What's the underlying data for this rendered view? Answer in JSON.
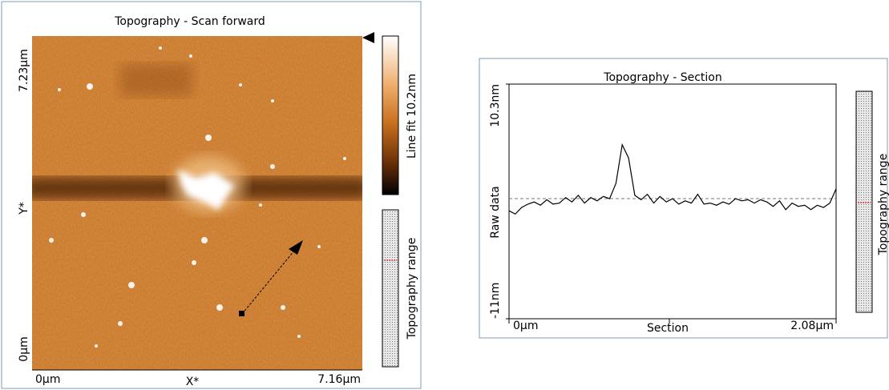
{
  "scan_panel": {
    "title": "Topography - Scan forward",
    "y_top": "7.23µm",
    "y_label": "Y*",
    "y_bottom": "0µm",
    "x_left": "0µm",
    "x_label": "X*",
    "x_right": "7.16µm",
    "colorbar_label": "Line fit 10.2nm",
    "range_label": "Topography range"
  },
  "range_panel": {
    "label": "Topography range"
  },
  "chart_data": {
    "type": "line",
    "title": "Topography - Section",
    "y_label": "Raw data",
    "x_label": "Section",
    "color": "#000000",
    "ylim": [
      -11,
      10.3
    ],
    "yticks": [
      {
        "value": 10.3,
        "label": "10.3nm"
      },
      {
        "value": -11,
        "label": "-11nm"
      }
    ],
    "xlim": [
      0,
      2.08
    ],
    "xticks": [
      {
        "value": 0,
        "label": "0µm"
      },
      {
        "value": 2.08,
        "label": "2.08µm"
      }
    ],
    "reference_line": -0.1,
    "x": [
      0,
      0.04,
      0.08,
      0.12,
      0.16,
      0.2,
      0.24,
      0.28,
      0.32,
      0.36,
      0.4,
      0.44,
      0.48,
      0.52,
      0.56,
      0.6,
      0.64,
      0.68,
      0.72,
      0.76,
      0.8,
      0.84,
      0.88,
      0.92,
      0.96,
      1,
      1.04,
      1.08,
      1.12,
      1.16,
      1.2,
      1.24,
      1.28,
      1.32,
      1.36,
      1.4,
      1.44,
      1.48,
      1.52,
      1.56,
      1.6,
      1.64,
      1.68,
      1.72,
      1.76,
      1.8,
      1.84,
      1.88,
      1.92,
      1.96,
      2,
      2.04,
      2.08
    ],
    "values": [
      -1.2,
      -1.5,
      -0.9,
      -0.6,
      -0.4,
      -0.7,
      -0.2,
      -0.6,
      -0.5,
      0,
      -0.4,
      0.2,
      -0.5,
      0,
      -0.3,
      0.1,
      -0.1,
      1.3,
      4.8,
      3.6,
      0.2,
      -0.2,
      0.3,
      -0.5,
      0.1,
      -0.4,
      -0.1,
      -0.6,
      -0.3,
      -0.5,
      0.3,
      -0.6,
      -0.5,
      -0.7,
      -0.4,
      -0.6,
      -0.1,
      -0.3,
      -0.2,
      -0.5,
      -0.2,
      -0.4,
      -0.8,
      -0.3,
      -1.1,
      -0.5,
      -0.8,
      -0.7,
      -1.1,
      -0.7,
      -0.9,
      -0.5,
      0.8
    ]
  }
}
